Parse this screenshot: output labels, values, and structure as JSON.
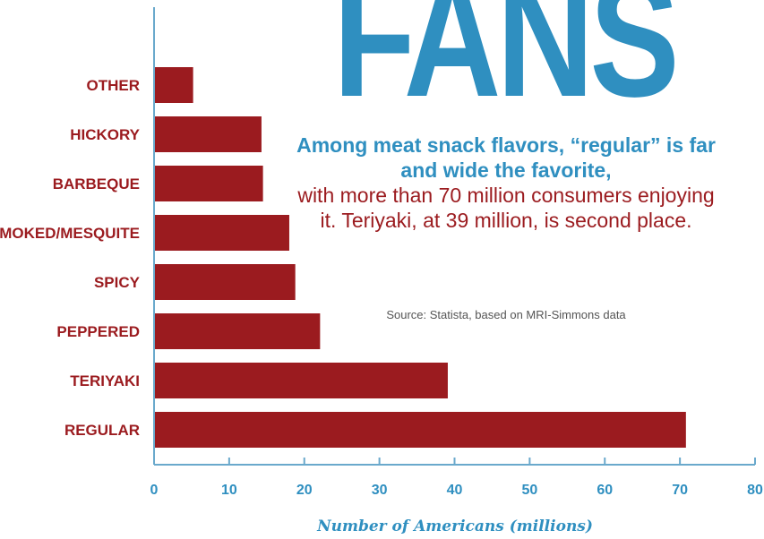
{
  "chart_data": {
    "type": "bar",
    "orientation": "horizontal",
    "title": "FANS",
    "subtitle_lead": "Among meat snack flavors, “regular” is far and wide the favorite,",
    "subtitle_body": "with more than 70 million consumers enjoying it. Teriyaki, at 39 million, is second place.",
    "source": "Source: Statista, based on MRI-Simmons data",
    "xlabel": "Number of Americans (millions)",
    "ylabel": "",
    "xlim": [
      0,
      80
    ],
    "xticks": [
      0,
      10,
      20,
      30,
      40,
      50,
      60,
      70,
      80
    ],
    "grid": false,
    "categories": [
      "OTHER",
      "HICKORY",
      "BARBEQUE",
      "SMOKED/MESQUITE",
      "SPICY",
      "PEPPERED",
      "TERIYAKI",
      "REGULAR"
    ],
    "values": [
      5.2,
      14.3,
      14.5,
      18,
      18.8,
      22.1,
      39.1,
      70.8
    ],
    "colors": {
      "bar": "#9b1b1f",
      "axis": "#6aa9cc",
      "accent": "#2f8fc0"
    }
  }
}
